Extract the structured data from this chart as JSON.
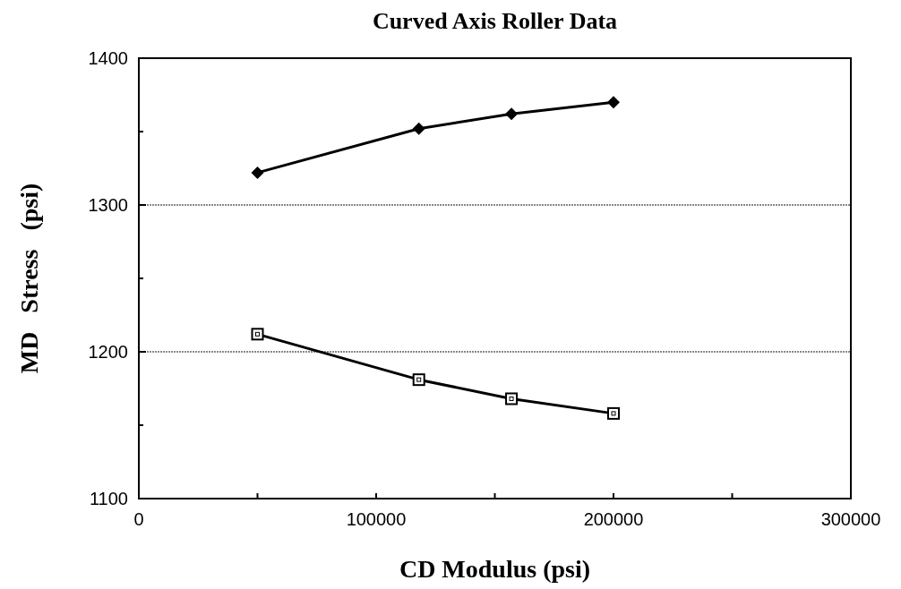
{
  "chart_data": {
    "type": "line",
    "title": "Curved Axis Roller Data",
    "xlabel": "CD Modulus (psi)",
    "ylabel": "MD   Stress   (psi)",
    "x": [
      50000,
      118000,
      157000,
      200000
    ],
    "series": [
      {
        "color": "#000000",
        "marker": "diamond",
        "values": [
          1322,
          1352,
          1362,
          1370
        ]
      },
      {
        "color": "#000000",
        "marker": "square",
        "values": [
          1212,
          1181,
          1168,
          1158
        ]
      }
    ],
    "xlim": [
      0,
      300000
    ],
    "xticks": [
      0,
      {
        "value": 50000,
        "label": null
      },
      100000,
      {
        "value": 150000,
        "label": null
      },
      200000,
      {
        "value": 250000,
        "label": null
      },
      300000
    ],
    "ylim": [
      1100,
      1400
    ],
    "yticks": [
      1100,
      {
        "value": 1150,
        "label": null
      },
      1200,
      {
        "value": 1250,
        "label": null
      },
      1300,
      {
        "value": 1350,
        "label": null
      },
      1400
    ],
    "grid": "y",
    "line_style": "solid"
  }
}
